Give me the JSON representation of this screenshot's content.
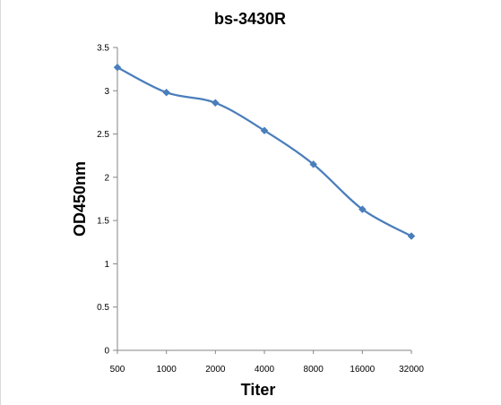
{
  "chart_data": {
    "type": "line",
    "title": "bs-3430R",
    "xlabel": "Titer",
    "ylabel": "OD450nm",
    "categories": [
      "500",
      "1000",
      "2000",
      "4000",
      "8000",
      "16000",
      "32000"
    ],
    "yticks": [
      "0",
      "0.5",
      "1",
      "1.5",
      "2",
      "2.5",
      "3",
      "3.5"
    ],
    "ylim": [
      0,
      3.5
    ],
    "grid": false,
    "legend": "none",
    "series": [
      {
        "values": [
          3.27,
          2.98,
          2.86,
          2.54,
          2.15,
          1.63,
          1.32
        ],
        "color": "#4a7ebb",
        "marker": "diamond",
        "smooth": true
      }
    ]
  }
}
